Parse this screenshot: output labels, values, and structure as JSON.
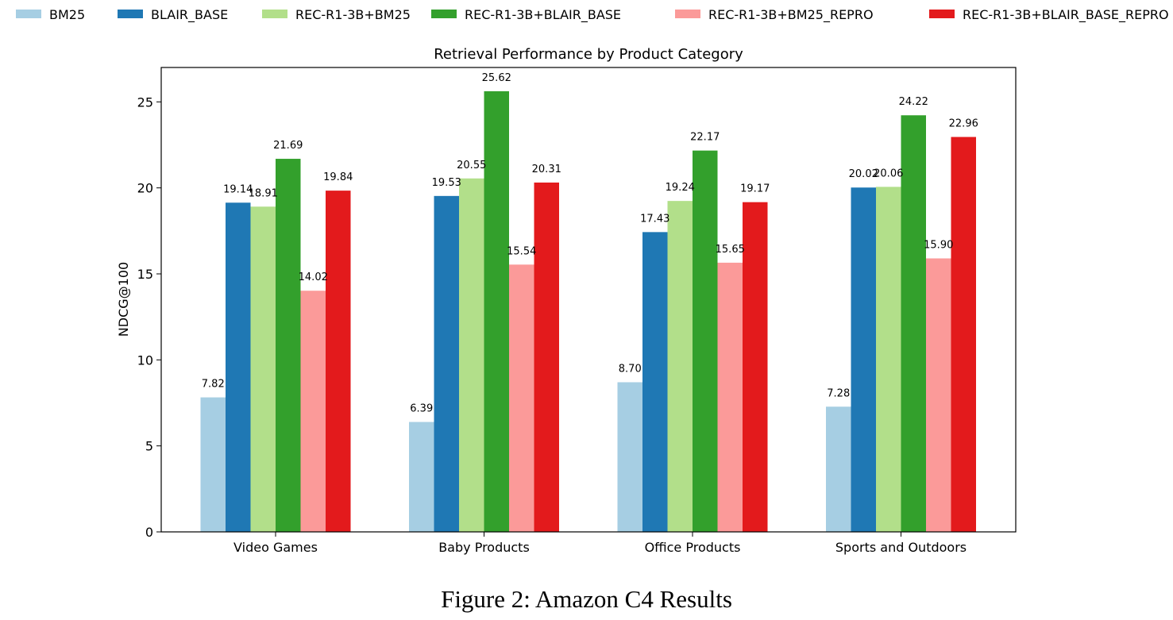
{
  "chart_data": {
    "type": "bar",
    "title": "Retrieval Performance by Product Category",
    "xlabel": "",
    "ylabel": "NDCG@100",
    "ylim": [
      0,
      27
    ],
    "yticks": [
      0,
      5,
      10,
      15,
      20,
      25
    ],
    "grid": false,
    "legend_position": "top",
    "categories": [
      "Video Games",
      "Baby Products",
      "Office Products",
      "Sports and Outdoors"
    ],
    "series": [
      {
        "name": "BM25",
        "color": "#a6cee3",
        "values": [
          7.82,
          6.39,
          8.7,
          7.28
        ]
      },
      {
        "name": "BLAIR_BASE",
        "color": "#1f78b4",
        "values": [
          19.14,
          19.53,
          17.43,
          20.02
        ]
      },
      {
        "name": "REC-R1-3B+BM25",
        "color": "#b2df8a",
        "values": [
          18.91,
          20.55,
          19.24,
          20.06
        ]
      },
      {
        "name": "REC-R1-3B+BLAIR_BASE",
        "color": "#33a02c",
        "values": [
          21.69,
          25.62,
          22.17,
          24.22
        ]
      },
      {
        "name": "REC-R1-3B+BM25_REPRO",
        "color": "#fb9a99",
        "values": [
          14.02,
          15.54,
          15.65,
          15.9
        ]
      },
      {
        "name": "REC-R1-3B+BLAIR_BASE_REPRO",
        "color": "#e31a1c",
        "values": [
          19.84,
          20.31,
          19.17,
          22.96
        ]
      }
    ]
  },
  "caption": "Figure 2: Amazon C4 Results"
}
